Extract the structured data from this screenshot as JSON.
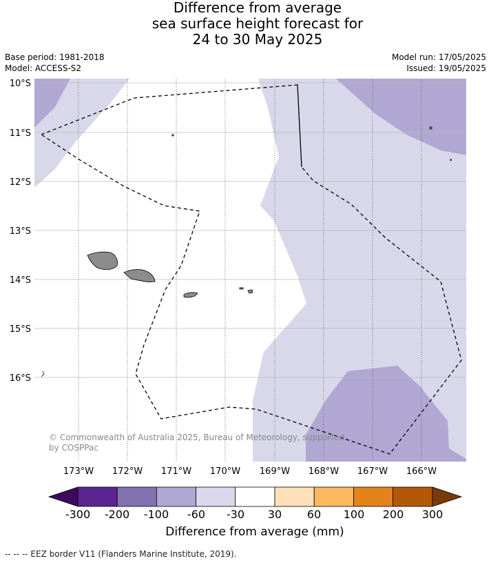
{
  "title": {
    "line1": "Difference from average",
    "line2": "sea surface height forecast for",
    "line3": "24 to 30 May 2025"
  },
  "meta": {
    "base_period": "Base period: 1981-2018",
    "model": "Model: ACCESS-S2",
    "model_run": "Model run: 17/05/2025",
    "issued": "Issued: 19/05/2025"
  },
  "map": {
    "lat_labels": [
      "10°S",
      "11°S",
      "12°S",
      "13°S",
      "14°S",
      "15°S",
      "16°S"
    ],
    "lon_labels": [
      "173°W",
      "172°W",
      "171°W",
      "170°W",
      "169°W",
      "168°W",
      "167°W",
      "166°W"
    ],
    "copyright_line1": "© Commonwealth of Australia 2025, Bureau of Meteorology, supported",
    "copyright_line2": "by COSPPac"
  },
  "colorbar": {
    "ticks": [
      "-300",
      "-200",
      "-100",
      "-60",
      "-30",
      "30",
      "60",
      "100",
      "200",
      "300"
    ],
    "colors": [
      "#3f0a5e",
      "#5b2590",
      "#8272b0",
      "#b0a8d3",
      "#d8d8ea",
      "#ffffff",
      "#fde0b8",
      "#fbb860",
      "#e2831c",
      "#b35808",
      "#7a3a0a"
    ],
    "label": "Difference from average (mm)"
  },
  "colors": {
    "band_light": "#d8d8ea",
    "band_mid": "#b0a8d3",
    "land": "#8c8c8c"
  },
  "footnote": "--  --  -- EEZ border V11 (Flanders Marine Institute, 2019)."
}
